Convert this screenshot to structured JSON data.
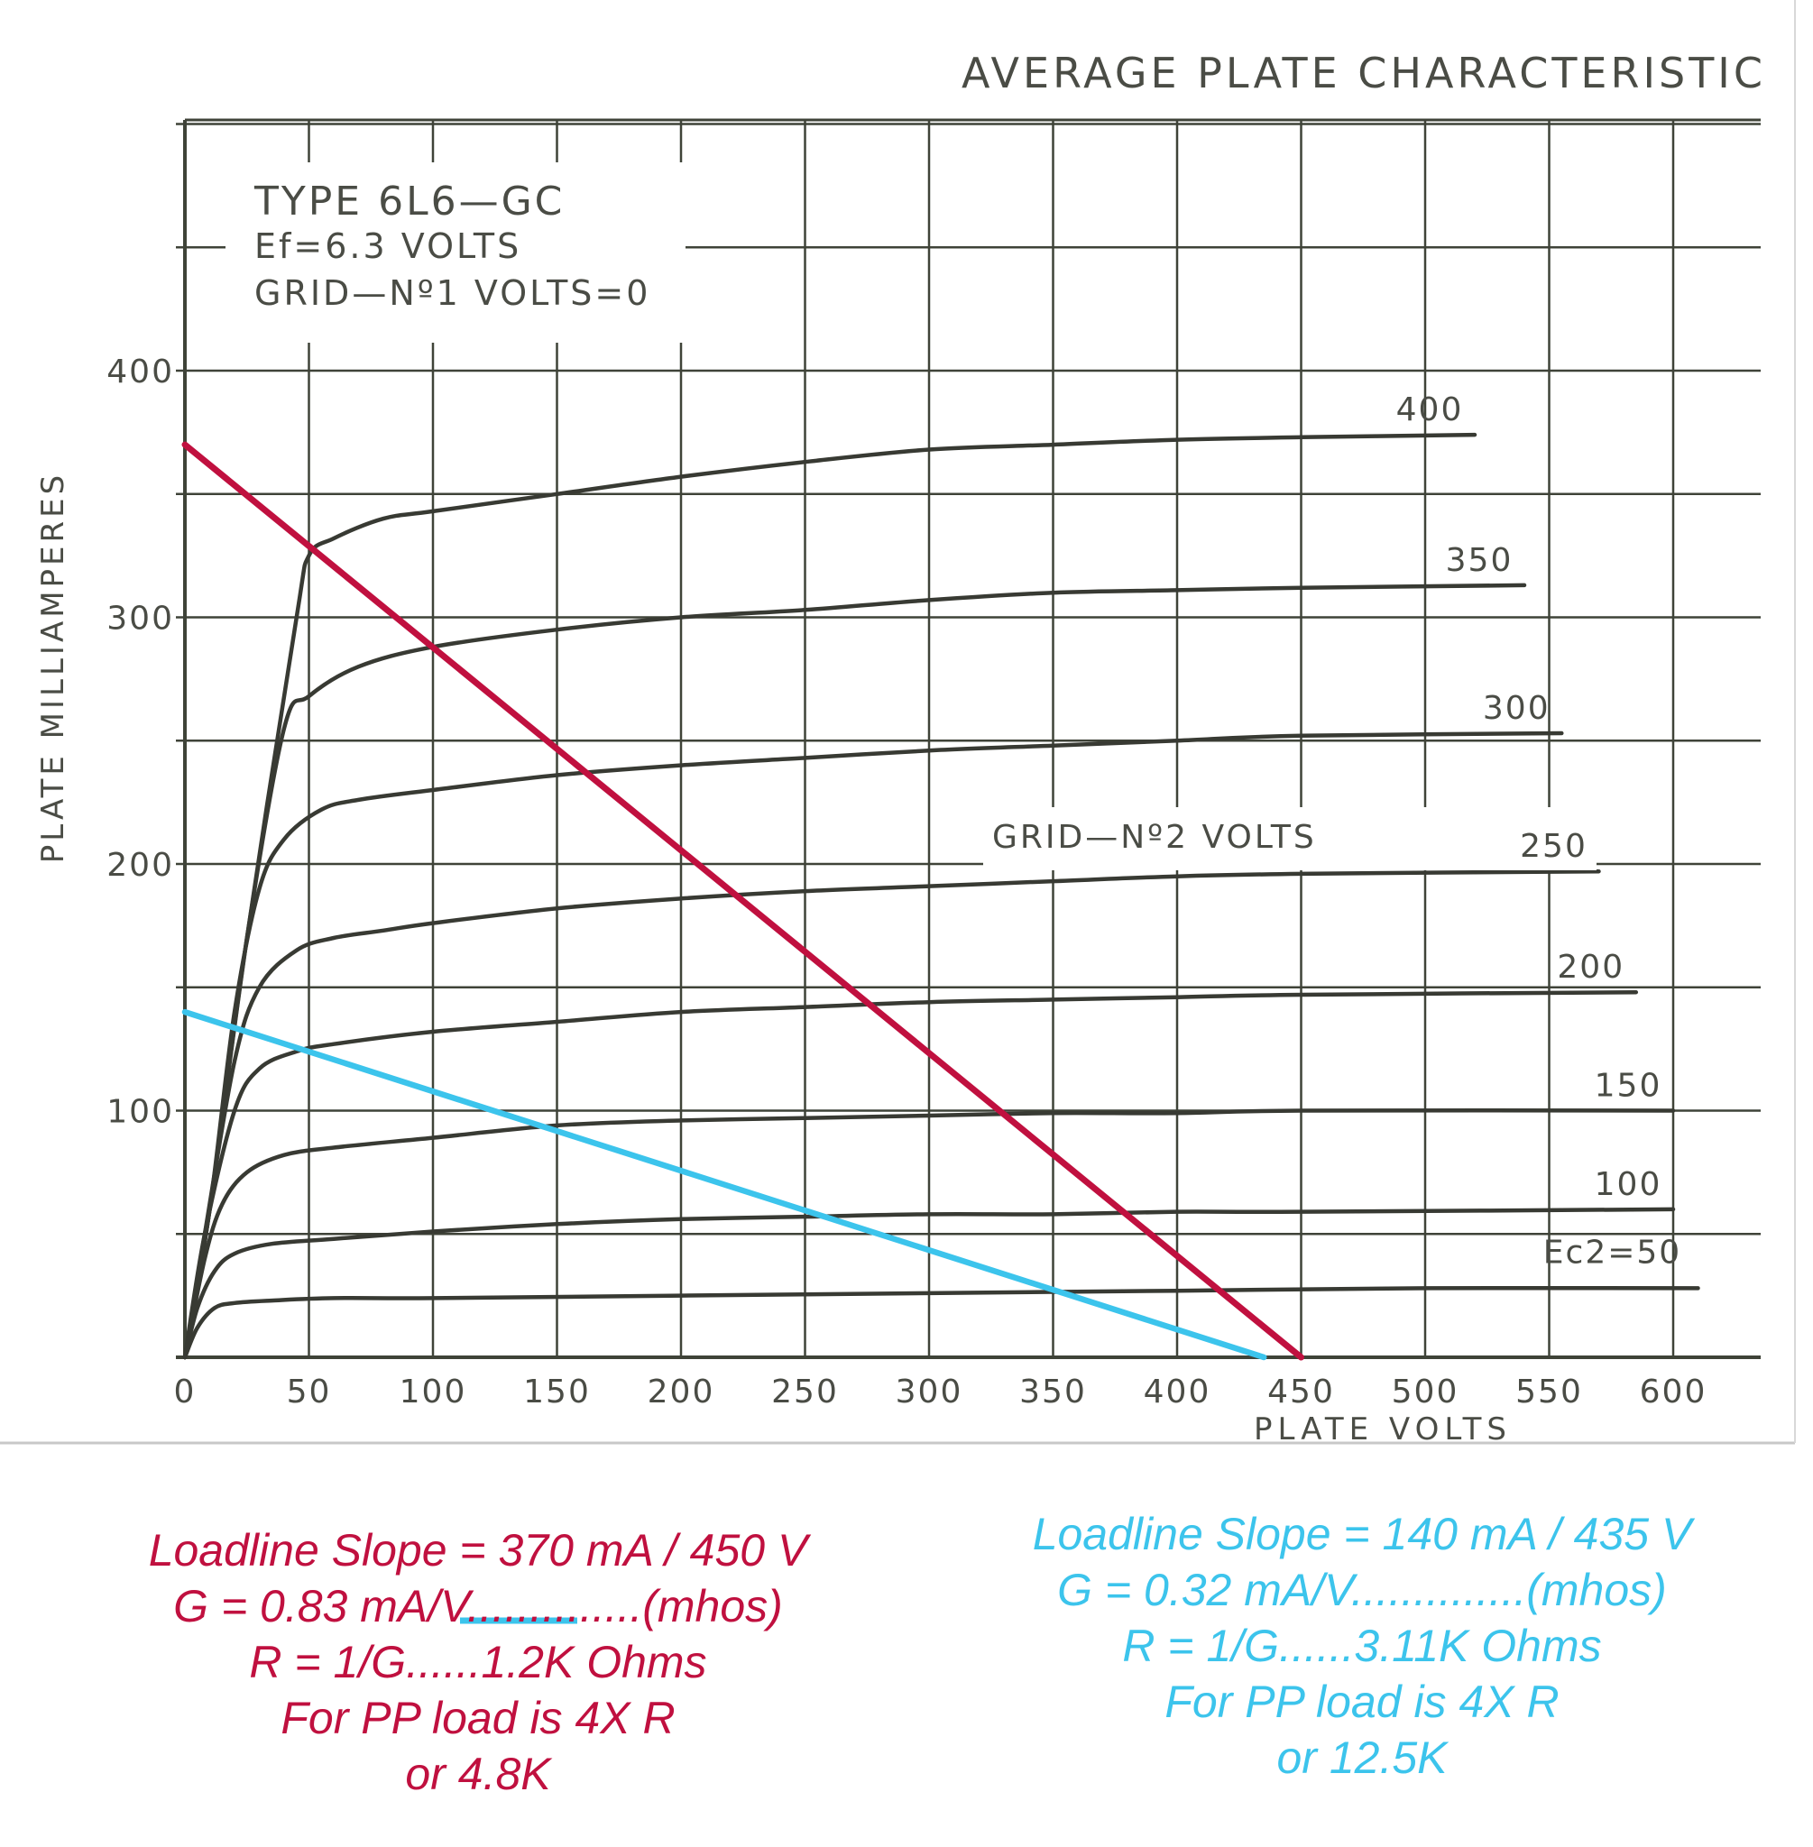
{
  "colors": {
    "paper": "#ffffff",
    "grid": "#3f4338",
    "curve": "#383a33",
    "ink": "#4a4c45",
    "red": "#c0103f",
    "blue": "#3cc4ec"
  },
  "chart_data": {
    "type": "line",
    "title": "AVERAGE PLATE CHARACTERISTIC",
    "xlabel": "PLATE VOLTS",
    "ylabel": "PLATE MILLIAMPERES",
    "xlim": [
      0,
      635
    ],
    "ylim": [
      0,
      500
    ],
    "xticks": [
      0,
      50,
      100,
      150,
      200,
      250,
      300,
      350,
      400,
      450,
      500,
      550,
      600
    ],
    "yticks": [
      100,
      200,
      300,
      400
    ],
    "grid": true,
    "info_box": {
      "line1": "TYPE 6L6—GC",
      "line2": "Ef=6.3 VOLTS",
      "line3": "GRID—Nº1 VOLTS=0"
    },
    "series_group_label": "GRID—Nº2 VOLTS",
    "series": [
      {
        "name": "400",
        "x": [
          0,
          10,
          25,
          45,
          50,
          60,
          80,
          100,
          150,
          200,
          250,
          300,
          350,
          400,
          450,
          520
        ],
        "y": [
          0,
          60,
          170,
          300,
          325,
          332,
          340,
          343,
          350,
          357,
          363,
          368,
          370,
          372,
          373,
          374
        ]
      },
      {
        "name": "350",
        "x": [
          0,
          10,
          25,
          40,
          50,
          70,
          100,
          150,
          200,
          250,
          300,
          350,
          400,
          450,
          540
        ],
        "y": [
          0,
          60,
          170,
          255,
          268,
          280,
          288,
          295,
          300,
          303,
          307,
          310,
          311,
          312,
          313
        ]
      },
      {
        "name": "300",
        "x": [
          0,
          10,
          20,
          30,
          40,
          55,
          70,
          100,
          150,
          200,
          250,
          300,
          350,
          400,
          450,
          555
        ],
        "y": [
          0,
          60,
          140,
          190,
          210,
          222,
          226,
          230,
          236,
          240,
          243,
          246,
          248,
          250,
          252,
          253
        ]
      },
      {
        "name": "250",
        "x": [
          0,
          8,
          20,
          30,
          45,
          60,
          80,
          100,
          150,
          200,
          250,
          300,
          350,
          400,
          450,
          570
        ],
        "y": [
          0,
          50,
          120,
          150,
          165,
          170,
          173,
          176,
          182,
          186,
          189,
          191,
          193,
          195,
          196,
          197
        ]
      },
      {
        "name": "200",
        "x": [
          0,
          8,
          20,
          30,
          45,
          60,
          100,
          150,
          200,
          250,
          300,
          350,
          400,
          450,
          585
        ],
        "y": [
          0,
          50,
          100,
          117,
          124,
          127,
          132,
          136,
          140,
          142,
          144,
          145,
          146,
          147,
          148
        ]
      },
      {
        "name": "150",
        "x": [
          0,
          8,
          15,
          25,
          40,
          60,
          100,
          150,
          200,
          250,
          300,
          350,
          400,
          450,
          600
        ],
        "y": [
          0,
          40,
          62,
          75,
          82,
          85,
          89,
          94,
          96,
          97,
          98,
          99,
          99,
          100,
          100
        ]
      },
      {
        "name": "100",
        "x": [
          0,
          5,
          12,
          20,
          35,
          60,
          100,
          150,
          200,
          250,
          300,
          350,
          400,
          450,
          600
        ],
        "y": [
          0,
          20,
          35,
          42,
          46,
          48,
          51,
          54,
          56,
          57,
          58,
          58,
          59,
          59,
          60
        ]
      },
      {
        "name": "Ec2=50",
        "x": [
          0,
          5,
          12,
          20,
          35,
          60,
          100,
          200,
          300,
          400,
          500,
          610
        ],
        "y": [
          0,
          12,
          20,
          22,
          23,
          24,
          24,
          25,
          26,
          27,
          28,
          28
        ]
      }
    ],
    "loadlines": [
      {
        "name": "red",
        "x": [
          0,
          450
        ],
        "y": [
          370,
          0
        ]
      },
      {
        "name": "blue",
        "x": [
          0,
          435
        ],
        "y": [
          140,
          0
        ]
      }
    ]
  },
  "notes": {
    "red": [
      "Loadline Slope = 370 mA / 450 V",
      "G = 0.83 mA/V..............(mhos)",
      "R = 1/G......1.2K Ohms",
      "For PP load is 4X R",
      "or 4.8K"
    ],
    "blue": [
      "Loadline Slope = 140 mA / 435 V",
      "G = 0.32 mA/V..............(mhos)",
      "R = 1/G......3.11K Ohms",
      "For PP load is 4X R",
      "or 12.5K"
    ]
  }
}
